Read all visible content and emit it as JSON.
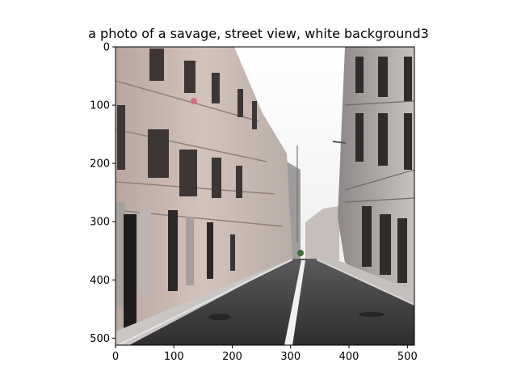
{
  "figure": {
    "title": "a photo of a savage, street view, white background3"
  },
  "image_axes": {
    "x_ticks": [
      {
        "value": 0,
        "label": "0"
      },
      {
        "value": 100,
        "label": "100"
      },
      {
        "value": 200,
        "label": "200"
      },
      {
        "value": 300,
        "label": "300"
      },
      {
        "value": 400,
        "label": "400"
      },
      {
        "value": 500,
        "label": "500"
      }
    ],
    "y_ticks": [
      {
        "value": 0,
        "label": "0"
      },
      {
        "value": 100,
        "label": "100"
      },
      {
        "value": 200,
        "label": "200"
      },
      {
        "value": 300,
        "label": "300"
      },
      {
        "value": 400,
        "label": "400"
      },
      {
        "value": 500,
        "label": "500"
      }
    ],
    "xlim": [
      0,
      512
    ],
    "ylim": [
      512,
      0
    ]
  },
  "colors": {
    "sky": "#f4f4f4",
    "left_building": "#c7b8b0",
    "right_building": "#a9a4a2",
    "road": "#3a3a3c",
    "sidewalk": "#c9c6c4",
    "lane_marking": "#f0f0f0"
  }
}
